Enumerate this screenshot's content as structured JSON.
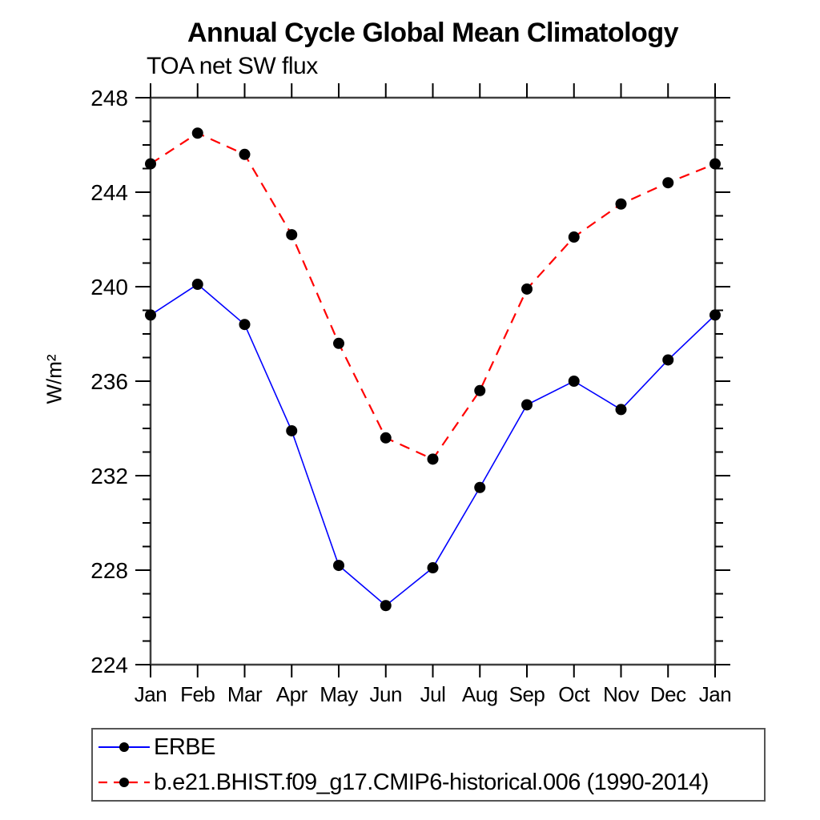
{
  "page": {
    "background": "#ffffff"
  },
  "chart_data": {
    "type": "line",
    "title": "Annual Cycle Global Mean Climatology",
    "subtitle": "TOA net SW flux",
    "ylabel": "W/m²",
    "categories": [
      "Jan",
      "Feb",
      "Mar",
      "Apr",
      "May",
      "Jun",
      "Jul",
      "Aug",
      "Sep",
      "Oct",
      "Nov",
      "Dec",
      "Jan"
    ],
    "ylim": [
      224,
      248
    ],
    "ytick_major_step": 4,
    "ytick_minor_step": 1,
    "grid": false,
    "legend_position": "bottom-left",
    "series": [
      {
        "name": "ERBE",
        "color": "#0000ff",
        "style": "solid",
        "marker": "circle",
        "marker_color": "#000000",
        "values": [
          238.8,
          240.1,
          238.4,
          233.9,
          228.2,
          226.5,
          228.1,
          231.5,
          235.0,
          236.0,
          234.8,
          236.9,
          238.8
        ]
      },
      {
        "name": "b.e21.BHIST.f09_g17.CMIP6-historical.006 (1990-2014)",
        "color": "#ff0000",
        "style": "dashed",
        "marker": "circle",
        "marker_color": "#000000",
        "values": [
          245.2,
          246.5,
          245.6,
          242.2,
          237.6,
          233.6,
          232.7,
          235.6,
          239.9,
          242.1,
          243.5,
          244.4,
          245.2
        ]
      }
    ]
  },
  "colors": {
    "frame": "#3f3f3f",
    "tick": "#000000",
    "text": "#000000"
  }
}
